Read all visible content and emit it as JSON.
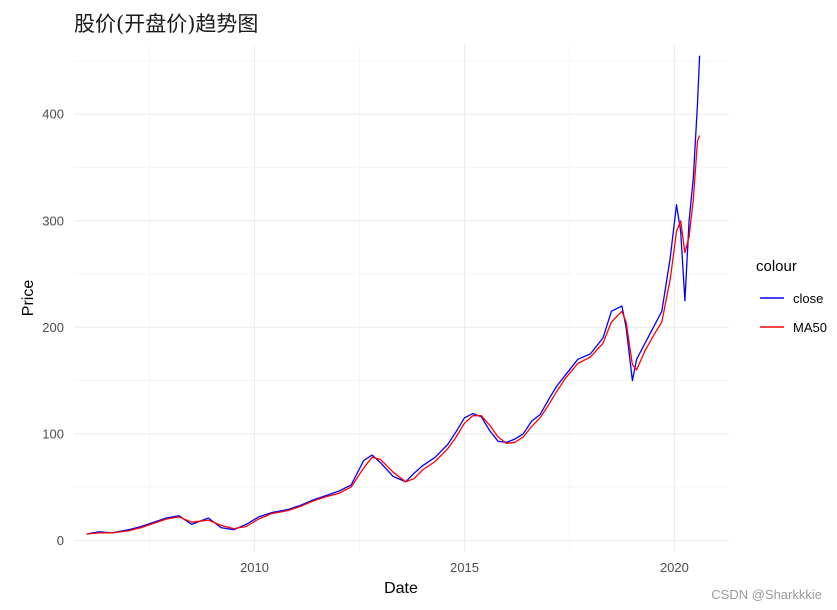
{
  "chart_data": {
    "type": "line",
    "title": "股价(开盘价)趋势图",
    "xlabel": "Date",
    "ylabel": "Price",
    "xlim": [
      2005.7,
      2021.3
    ],
    "ylim": [
      -10,
      465
    ],
    "xticks": [
      2010,
      2015,
      2020
    ],
    "yticks": [
      0,
      100,
      200,
      300,
      400
    ],
    "grid": true,
    "legend": {
      "title": "colour",
      "placement": "right",
      "entries": [
        {
          "label": "close",
          "color": "#0000ff"
        },
        {
          "label": "MA50",
          "color": "#ff0000"
        }
      ]
    },
    "series": [
      {
        "name": "close",
        "color": "#0000ff",
        "x": [
          2006.0,
          2006.3,
          2006.6,
          2007.0,
          2007.3,
          2007.6,
          2007.9,
          2008.2,
          2008.5,
          2008.9,
          2009.2,
          2009.5,
          2009.8,
          2010.1,
          2010.4,
          2010.8,
          2011.1,
          2011.4,
          2011.7,
          2012.0,
          2012.3,
          2012.6,
          2012.8,
          2013.0,
          2013.3,
          2013.6,
          2013.8,
          2014.0,
          2014.3,
          2014.6,
          2014.8,
          2015.0,
          2015.2,
          2015.4,
          2015.6,
          2015.8,
          2016.0,
          2016.2,
          2016.4,
          2016.6,
          2016.8,
          2017.0,
          2017.2,
          2017.4,
          2017.7,
          2018.0,
          2018.3,
          2018.5,
          2018.75,
          2018.85,
          2019.0,
          2019.1,
          2019.3,
          2019.5,
          2019.7,
          2019.9,
          2020.05,
          2020.15,
          2020.25,
          2020.35,
          2020.45,
          2020.55,
          2020.6
        ],
        "y": [
          6,
          8,
          7,
          10,
          13,
          17,
          21,
          23,
          15,
          21,
          12,
          10,
          15,
          22,
          26,
          29,
          33,
          38,
          42,
          46,
          52,
          75,
          80,
          73,
          60,
          55,
          63,
          70,
          78,
          90,
          102,
          115,
          119,
          116,
          103,
          93,
          92,
          95,
          100,
          112,
          118,
          132,
          145,
          155,
          170,
          175,
          190,
          215,
          220,
          200,
          150,
          170,
          185,
          200,
          215,
          265,
          315,
          290,
          225,
          300,
          340,
          410,
          455
        ]
      },
      {
        "name": "MA50",
        "color": "#ff0000",
        "x": [
          2006.0,
          2006.3,
          2006.6,
          2007.0,
          2007.3,
          2007.6,
          2007.9,
          2008.2,
          2008.5,
          2008.9,
          2009.2,
          2009.5,
          2009.8,
          2010.1,
          2010.4,
          2010.8,
          2011.1,
          2011.4,
          2011.7,
          2012.0,
          2012.3,
          2012.6,
          2012.8,
          2013.0,
          2013.3,
          2013.6,
          2013.8,
          2014.0,
          2014.3,
          2014.6,
          2014.8,
          2015.0,
          2015.2,
          2015.4,
          2015.6,
          2015.8,
          2016.0,
          2016.2,
          2016.4,
          2016.6,
          2016.8,
          2017.0,
          2017.2,
          2017.4,
          2017.7,
          2018.0,
          2018.3,
          2018.5,
          2018.75,
          2018.85,
          2019.0,
          2019.1,
          2019.3,
          2019.5,
          2019.7,
          2019.9,
          2020.05,
          2020.15,
          2020.25,
          2020.35,
          2020.45,
          2020.55,
          2020.6
        ],
        "y": [
          6,
          7,
          7,
          9,
          12,
          16,
          20,
          22,
          17,
          19,
          14,
          11,
          13,
          20,
          25,
          28,
          32,
          37,
          41,
          44,
          50,
          68,
          78,
          76,
          64,
          55,
          58,
          66,
          74,
          86,
          97,
          110,
          117,
          117,
          108,
          97,
          91,
          92,
          97,
          107,
          115,
          127,
          140,
          152,
          166,
          172,
          185,
          205,
          215,
          205,
          165,
          160,
          178,
          192,
          205,
          245,
          290,
          300,
          270,
          285,
          320,
          375,
          380
        ]
      }
    ]
  },
  "watermark": "CSDN @Sharkkkie"
}
